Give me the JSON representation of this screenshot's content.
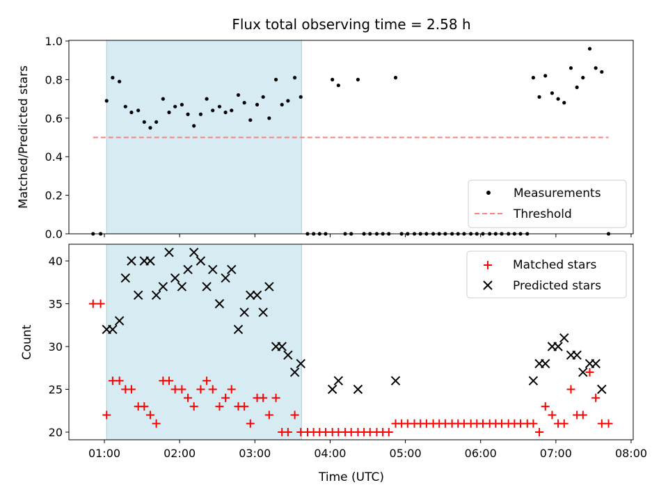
{
  "chart_data": {
    "type": "scatter",
    "title": "Flux total observing time = 2.58 h",
    "xlabel": "Time (UTC)",
    "x_unit": "hours UTC",
    "xlim": [
      0.5,
      8.0
    ],
    "x_ticks": [
      1,
      2,
      3,
      4,
      5,
      6,
      7,
      8
    ],
    "x_tick_labels": [
      "01:00",
      "02:00",
      "03:00",
      "04:00",
      "05:00",
      "06:00",
      "07:00",
      "08:00"
    ],
    "shaded_interval": [
      1.03,
      3.62
    ],
    "shade_color": "#add8e6",
    "panels": [
      {
        "ylabel": "Matched/Predicted stars",
        "ylim": [
          0.0,
          1.0
        ],
        "y_ticks": [
          0.0,
          0.2,
          0.4,
          0.6,
          0.8,
          1.0
        ],
        "y_tick_labels": [
          "0.0",
          "0.2",
          "0.4",
          "0.6",
          "0.8",
          "1.0"
        ],
        "legend_position": "lower-right",
        "series": [
          {
            "name": "Measurements",
            "marker": "dot",
            "color": "#000000",
            "x": [
              0.85,
              0.95,
              1.03,
              1.11,
              1.2,
              1.28,
              1.36,
              1.45,
              1.53,
              1.61,
              1.69,
              1.78,
              1.86,
              1.94,
              2.03,
              2.11,
              2.19,
              2.28,
              2.36,
              2.44,
              2.53,
              2.61,
              2.69,
              2.78,
              2.86,
              2.94,
              3.03,
              3.11,
              3.19,
              3.28,
              3.36,
              3.44,
              3.53,
              3.61,
              3.7,
              3.78,
              3.86,
              3.94,
              4.03,
              4.11,
              4.2,
              4.28,
              4.37,
              4.45,
              4.53,
              4.62,
              4.7,
              4.78,
              4.87,
              4.95,
              5.03,
              5.12,
              5.2,
              5.28,
              5.37,
              5.45,
              5.53,
              5.62,
              5.7,
              5.78,
              5.87,
              5.95,
              6.03,
              6.12,
              6.2,
              6.28,
              6.37,
              6.45,
              6.53,
              6.62,
              6.7,
              6.78,
              6.86,
              6.95,
              7.03,
              7.11,
              7.2,
              7.28,
              7.36,
              7.45,
              7.53,
              7.61,
              7.7
            ],
            "y": [
              0,
              0,
              0.69,
              0.81,
              0.79,
              0.66,
              0.63,
              0.64,
              0.58,
              0.55,
              0.58,
              0.7,
              0.63,
              0.66,
              0.67,
              0.62,
              0.56,
              0.62,
              0.7,
              0.64,
              0.66,
              0.63,
              0.64,
              0.72,
              0.68,
              0.59,
              0.67,
              0.71,
              0.6,
              0.8,
              0.67,
              0.69,
              0.81,
              0.71,
              0,
              0,
              0,
              0,
              0.8,
              0.77,
              0,
              0,
              0.8,
              0,
              0,
              0,
              0,
              0,
              0.81,
              0,
              0,
              0,
              0,
              0,
              0,
              0,
              0,
              0,
              0,
              0,
              0,
              0,
              0,
              0,
              0,
              0,
              0,
              0,
              0,
              0,
              0.81,
              0.71,
              0.82,
              0.73,
              0.7,
              0.68,
              0.86,
              0.76,
              0.81,
              0.96,
              0.86,
              0.84,
              0
            ]
          },
          {
            "name": "Threshold",
            "type": "line",
            "style": "dashed",
            "color": "#ff7f7f",
            "x": [
              0.85,
              7.7
            ],
            "y": [
              0.5,
              0.5
            ]
          }
        ]
      },
      {
        "ylabel": "Count",
        "ylim": [
          19,
          42
        ],
        "y_ticks": [
          20,
          25,
          30,
          35,
          40
        ],
        "y_tick_labels": [
          "20",
          "25",
          "30",
          "35",
          "40"
        ],
        "legend_position": "upper-right",
        "series": [
          {
            "name": "Matched stars",
            "marker": "plus",
            "color": "#ff0000",
            "x": [
              0.85,
              0.95,
              1.03,
              1.11,
              1.2,
              1.28,
              1.36,
              1.45,
              1.53,
              1.61,
              1.69,
              1.78,
              1.86,
              1.94,
              2.03,
              2.11,
              2.19,
              2.28,
              2.36,
              2.44,
              2.53,
              2.61,
              2.69,
              2.78,
              2.86,
              2.94,
              3.03,
              3.11,
              3.19,
              3.28,
              3.36,
              3.44,
              3.53,
              3.61,
              3.7,
              3.78,
              3.86,
              3.94,
              4.03,
              4.11,
              4.2,
              4.28,
              4.37,
              4.45,
              4.53,
              4.62,
              4.7,
              4.78,
              4.87,
              4.95,
              5.03,
              5.12,
              5.2,
              5.28,
              5.37,
              5.45,
              5.53,
              5.62,
              5.7,
              5.78,
              5.87,
              5.95,
              6.03,
              6.12,
              6.2,
              6.28,
              6.37,
              6.45,
              6.53,
              6.62,
              6.7,
              6.78,
              6.86,
              6.95,
              7.03,
              7.11,
              7.2,
              7.28,
              7.36,
              7.45,
              7.53,
              7.61,
              7.7
            ],
            "y": [
              35,
              35,
              22,
              26,
              26,
              25,
              25,
              23,
              23,
              22,
              21,
              26,
              26,
              25,
              25,
              24,
              23,
              25,
              26,
              25,
              23,
              24,
              25,
              23,
              23,
              21,
              24,
              24,
              22,
              24,
              20,
              20,
              22,
              20,
              20,
              20,
              20,
              20,
              20,
              20,
              20,
              20,
              20,
              20,
              20,
              20,
              20,
              20,
              21,
              21,
              21,
              21,
              21,
              21,
              21,
              21,
              21,
              21,
              21,
              21,
              21,
              21,
              21,
              21,
              21,
              21,
              21,
              21,
              21,
              21,
              21,
              20,
              23,
              22,
              21,
              21,
              25,
              22,
              22,
              27,
              24,
              21,
              21
            ]
          },
          {
            "name": "Predicted stars",
            "marker": "x",
            "color": "#000000",
            "x": [
              1.03,
              1.11,
              1.2,
              1.28,
              1.36,
              1.45,
              1.53,
              1.61,
              1.69,
              1.78,
              1.86,
              1.94,
              2.03,
              2.11,
              2.19,
              2.28,
              2.36,
              2.44,
              2.53,
              2.61,
              2.69,
              2.78,
              2.86,
              2.94,
              3.03,
              3.11,
              3.19,
              3.28,
              3.36,
              3.44,
              3.53,
              3.61,
              4.03,
              4.11,
              4.37,
              4.87,
              6.7,
              6.78,
              6.86,
              6.95,
              7.03,
              7.11,
              7.2,
              7.28,
              7.36,
              7.45,
              7.53,
              7.61
            ],
            "y": [
              32,
              32,
              33,
              38,
              40,
              36,
              40,
              40,
              36,
              37,
              41,
              38,
              37,
              39,
              41,
              40,
              37,
              39,
              35,
              38,
              39,
              32,
              34,
              36,
              36,
              34,
              37,
              30,
              30,
              29,
              27,
              28,
              25,
              26,
              25,
              26,
              26,
              28,
              28,
              30,
              30,
              31,
              29,
              29,
              27,
              28,
              28,
              25
            ]
          }
        ]
      }
    ]
  }
}
